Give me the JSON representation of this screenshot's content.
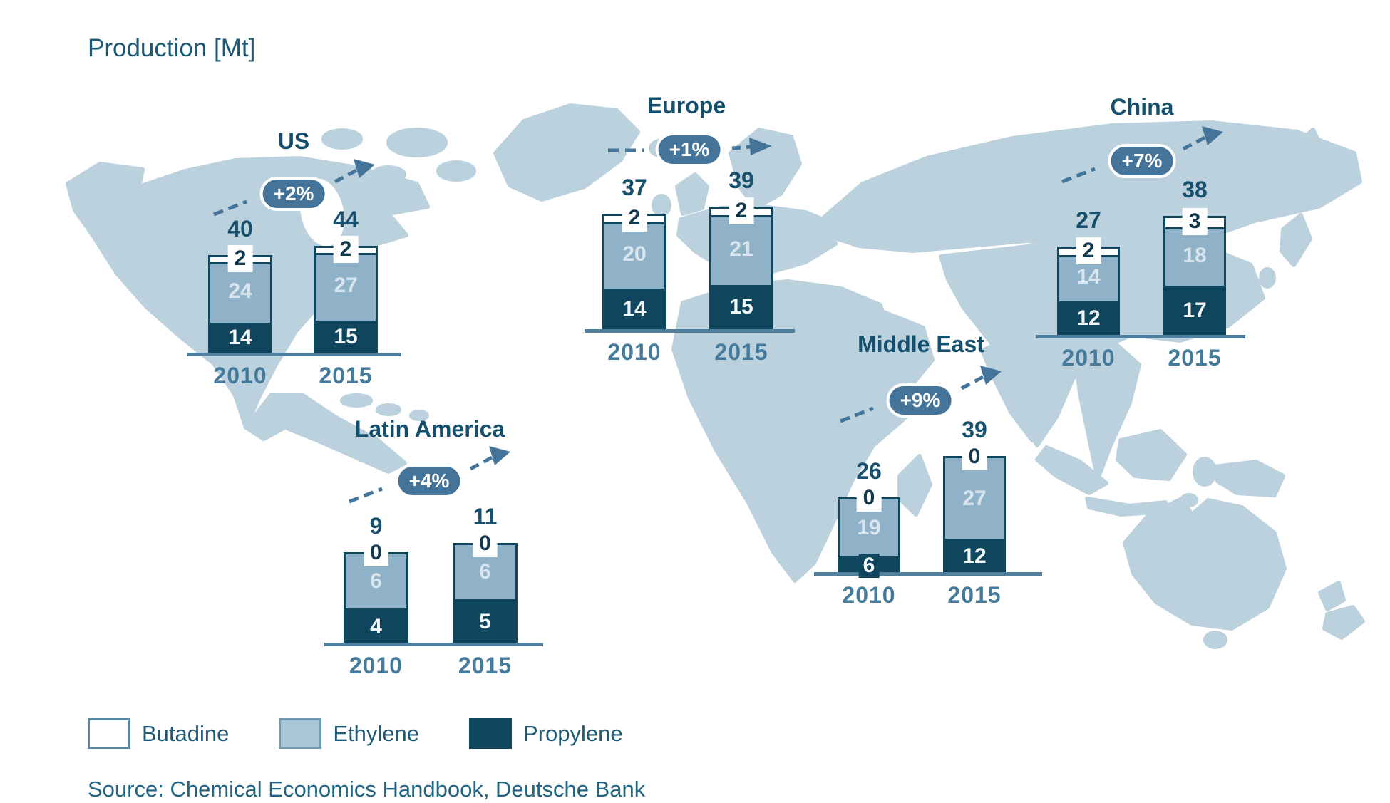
{
  "page_title": "Production [Mt]",
  "source": "Source: Chemical Economics Handbook, Deutsche Bank",
  "legend": {
    "items": [
      {
        "label": "Butadine",
        "color": "#ffffff"
      },
      {
        "label": "Ethylene",
        "color": "#a9c6d6"
      },
      {
        "label": "Propylene",
        "color": "#10455e"
      }
    ]
  },
  "colors": {
    "map_land": "#bcd1de",
    "butadine": "#ffffff",
    "ethylene": "#8fb2c8",
    "propylene": "#10455e",
    "accent_dark_text": "#17506d",
    "growth_badge": "#44749a",
    "baseline": "#4f7f9d",
    "year_text": "#447a9c"
  },
  "chart_data": {
    "type": "bar",
    "subtype": "stacked-by-region-on-map",
    "unit": "Mt",
    "title": "Production [Mt]",
    "categories": [
      "2010",
      "2015"
    ],
    "series_names": [
      "Butadine",
      "Ethylene",
      "Propylene"
    ],
    "legend_position": "bottom-left",
    "regions": [
      {
        "name": "US",
        "growth": "+2%",
        "bars": [
          {
            "year": "2010",
            "total": 40,
            "segments": {
              "butadine": 2,
              "ethylene": 24,
              "propylene": 14
            }
          },
          {
            "year": "2015",
            "total": 44,
            "segments": {
              "butadine": 2,
              "ethylene": 27,
              "propylene": 15
            }
          }
        ]
      },
      {
        "name": "Europe",
        "growth": "+1%",
        "bars": [
          {
            "year": "2010",
            "total": 37,
            "segments": {
              "butadine": 2,
              "ethylene": 20,
              "propylene": 14
            }
          },
          {
            "year": "2015",
            "total": 39,
            "segments": {
              "butadine": 2,
              "ethylene": 21,
              "propylene": 15
            }
          }
        ]
      },
      {
        "name": "Latin America",
        "growth": "+4%",
        "bars": [
          {
            "year": "2010",
            "total": 9,
            "segments": {
              "butadine": 0,
              "ethylene": 6,
              "propylene": 4
            }
          },
          {
            "year": "2015",
            "total": 11,
            "segments": {
              "butadine": 0,
              "ethylene": 6,
              "propylene": 5
            }
          }
        ]
      },
      {
        "name": "Middle East",
        "growth": "+9%",
        "bars": [
          {
            "year": "2010",
            "total": 26,
            "segments": {
              "butadine": 0,
              "ethylene": 19,
              "propylene": 6
            }
          },
          {
            "year": "2015",
            "total": 39,
            "segments": {
              "butadine": 0,
              "ethylene": 27,
              "propylene": 12
            }
          }
        ]
      },
      {
        "name": "China",
        "growth": "+7%",
        "bars": [
          {
            "year": "2010",
            "total": 27,
            "segments": {
              "butadine": 2,
              "ethylene": 14,
              "propylene": 12
            }
          },
          {
            "year": "2015",
            "total": 38,
            "segments": {
              "butadine": 3,
              "ethylene": 18,
              "propylene": 17
            }
          }
        ]
      }
    ]
  }
}
